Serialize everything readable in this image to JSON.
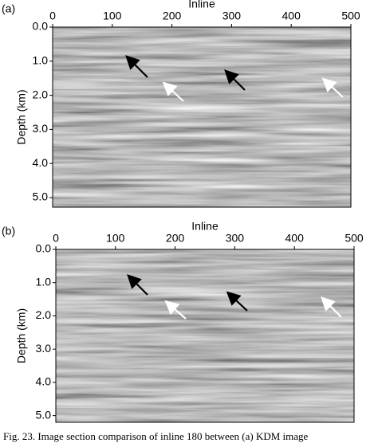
{
  "chart_data": [
    {
      "type": "image",
      "panel_label": "(a)",
      "xlabel": "Inline",
      "ylabel": "Depth (km)",
      "xlim": [
        0,
        500
      ],
      "xticks": [
        0,
        100,
        200,
        300,
        400,
        500
      ],
      "ylim": [
        0,
        5.28
      ],
      "yticks": [
        {
          "value": 0,
          "label": "0.0"
        },
        {
          "value": 1,
          "label": "1.0"
        },
        {
          "value": 2,
          "label": "2.0"
        },
        {
          "value": 3,
          "label": "3.0"
        },
        {
          "value": 4,
          "label": "4.0"
        },
        {
          "value": 5,
          "label": "5.0"
        }
      ]
    },
    {
      "type": "image",
      "panel_label": "(b)",
      "xlabel": "Inline",
      "ylabel": "Depth (km)",
      "xlim": [
        0,
        500
      ],
      "xticks": [
        0,
        100,
        200,
        300,
        400,
        500
      ],
      "ylim": [
        0,
        5.2
      ],
      "yticks": [
        {
          "value": 0,
          "label": "0.0"
        },
        {
          "value": 1,
          "label": "1.0"
        },
        {
          "value": 2,
          "label": "2.0"
        },
        {
          "value": 3,
          "label": "3.0"
        },
        {
          "value": 4,
          "label": "4.0"
        },
        {
          "value": 5,
          "label": "5.0"
        }
      ]
    }
  ],
  "caption": "Fig. 23.   Image section comparison of inline 180 between (a) KDM image"
}
